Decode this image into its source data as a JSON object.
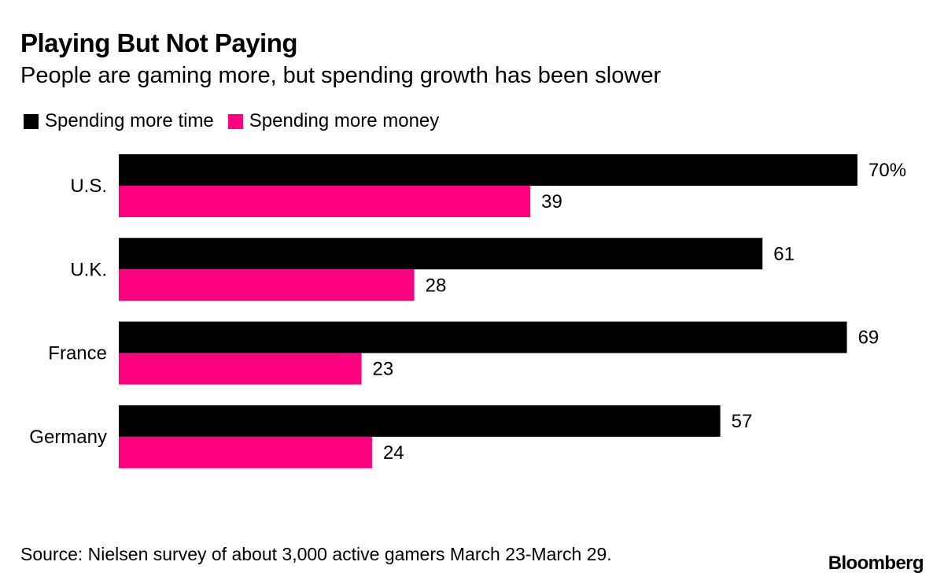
{
  "header": {
    "title": "Playing But Not Paying",
    "subtitle": "People are gaming more, but spending growth has been slower"
  },
  "legend": {
    "items": [
      {
        "label": "Spending more time",
        "color": "#000000"
      },
      {
        "label": "Spending more money",
        "color": "#ff0080"
      }
    ]
  },
  "chart_data": {
    "type": "bar",
    "orientation": "horizontal",
    "title": "Playing But Not Paying",
    "subtitle": "People are gaming more, but spending growth has been slower",
    "categories": [
      "U.S.",
      "U.K.",
      "France",
      "Germany"
    ],
    "series": [
      {
        "name": "Spending more time",
        "color": "#000000",
        "values": [
          70,
          61,
          69,
          57
        ],
        "labels": [
          "70%",
          "61",
          "69",
          "57"
        ]
      },
      {
        "name": "Spending more money",
        "color": "#ff0080",
        "values": [
          39,
          28,
          23,
          24
        ],
        "labels": [
          "39",
          "28",
          "23",
          "24"
        ]
      }
    ],
    "xlim": [
      0,
      70
    ],
    "xlabel": "",
    "ylabel": "",
    "grid": false,
    "legend_position": "top-left"
  },
  "footer": {
    "source": "Source: Nielsen survey of about 3,000 active gamers March 23-March 29.",
    "brand": "Bloomberg"
  }
}
